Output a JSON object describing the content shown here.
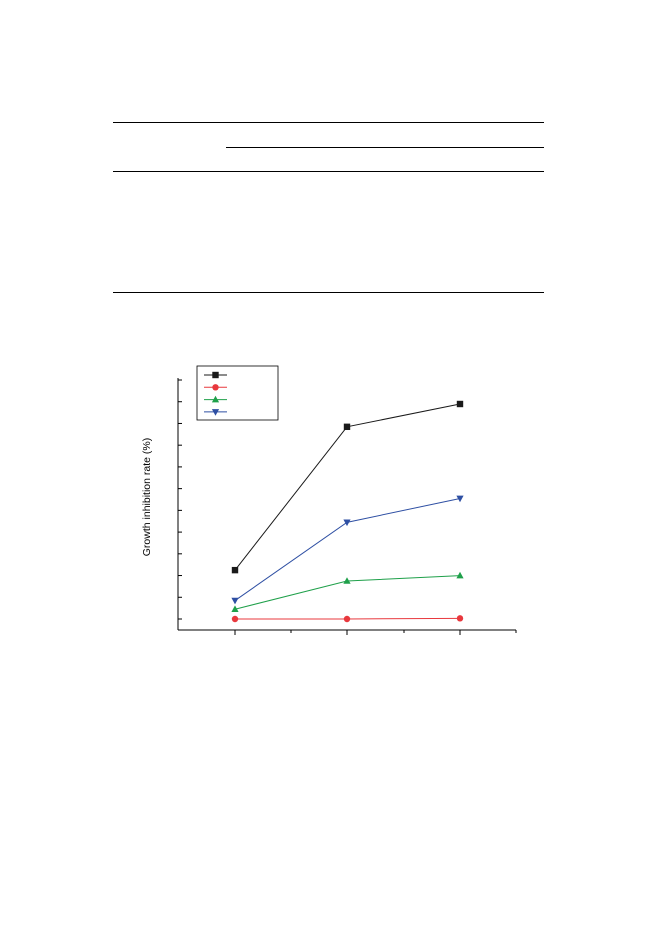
{
  "chart_data": {
    "type": "line",
    "title": "",
    "xlabel": "",
    "ylabel": "Growth inhibition rate (%)",
    "grid": false,
    "legend_position": "top-left",
    "x": [
      1,
      2,
      3
    ],
    "series": [
      {
        "color": "#1a1a1a",
        "marker": "square",
        "values": [
          22.5,
          88.5,
          99
        ]
      },
      {
        "color": "#e8383d",
        "marker": "circle",
        "values": [
          0,
          0,
          0.3
        ]
      },
      {
        "color": "#1fa04a",
        "marker": "triangle-up",
        "values": [
          4.5,
          17.5,
          20
        ]
      },
      {
        "color": "#2e4fa3",
        "marker": "triangle-down",
        "values": [
          8.5,
          44.5,
          55.5
        ]
      }
    ],
    "y_minor_ticks": 11,
    "x_minor_ticks": 7
  }
}
